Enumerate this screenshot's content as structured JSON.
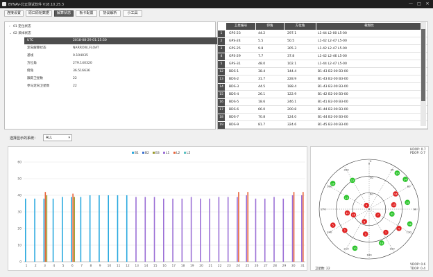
{
  "window": {
    "title": "BYNAV-北云测试软件 V18.10.25.3",
    "min": "—",
    "max": "□",
    "close": "✕"
  },
  "tabs": [
    {
      "label": "连接设置"
    },
    {
      "label": "原口原始数据"
    },
    {
      "label": "解算状态"
    },
    {
      "label": "板卡配置"
    },
    {
      "label": "协议解析"
    },
    {
      "label": "小工具"
    }
  ],
  "active_tab": 2,
  "tree": {
    "node1": "01 定位状态",
    "node2": "02 采样状态",
    "rows": [
      {
        "k": "UTC",
        "v": "2018-08-29 01:25:50"
      },
      {
        "k": "定向解算状态",
        "v": "NARROW_FLOAT"
      },
      {
        "k": "基线",
        "v": "0.104035"
      },
      {
        "k": "方位角",
        "v": "279.140320"
      },
      {
        "k": "俯角",
        "v": "36.516636"
      },
      {
        "k": "跟踪卫星数",
        "v": "22"
      },
      {
        "k": "参与定向卫星数",
        "v": "22"
      }
    ]
  },
  "sat_table": {
    "headers": [
      "卫星编号",
      "仰角",
      "方位角",
      "载频比"
    ],
    "rows": [
      {
        "i": "1",
        "id": "GPS-23",
        "el": "44.2",
        "az": "297.1",
        "sig": "L1-44 L2-00 L5-00"
      },
      {
        "i": "2",
        "id": "GPS-24",
        "el": "5.5",
        "az": "50.5",
        "sig": "L1-42 L2-47 L5-00"
      },
      {
        "i": "3",
        "id": "GPS-25",
        "el": "9.8",
        "az": "305.3",
        "sig": "L1-42 L2-47 L5-00"
      },
      {
        "i": "4",
        "id": "GPS-29",
        "el": "7.7",
        "az": "37.8",
        "sig": "L1-42 L2-46 L5-00"
      },
      {
        "i": "5",
        "id": "GPS-31",
        "el": "48.0",
        "az": "102.1",
        "sig": "L1-44 L2-47 L5-00"
      },
      {
        "i": "12",
        "id": "BDS-1",
        "el": "38.4",
        "az": "144.4",
        "sig": "B1-43 B2-00 B3-00"
      },
      {
        "i": "13",
        "id": "BDS-2",
        "el": "31.7",
        "az": "228.9",
        "sig": "B1-43 B2-00 B3-00"
      },
      {
        "i": "14",
        "id": "BDS-3",
        "el": "44.5",
        "az": "188.4",
        "sig": "B1-43 B2-00 B3-00"
      },
      {
        "i": "15",
        "id": "BDS-4",
        "el": "26.1",
        "az": "122.9",
        "sig": "B1-42 B2-00 B3-00"
      },
      {
        "i": "16",
        "id": "BDS-5",
        "el": "18.6",
        "az": "246.1",
        "sig": "B1-41 B2-00 B3-00"
      },
      {
        "i": "17",
        "id": "BDS-6",
        "el": "66.0",
        "az": "200.8",
        "sig": "B1-44 B2-00 B3-00"
      },
      {
        "i": "18",
        "id": "BDS-7",
        "el": "70.8",
        "az": "124.0",
        "sig": "B1-44 B2-00 B3-00"
      },
      {
        "i": "19",
        "id": "BDS-9",
        "el": "81.7",
        "az": "324.6",
        "sig": "B1-45 B2-00 B3-00"
      }
    ]
  },
  "selector": {
    "label": "选择显示的系统：",
    "value": "ALL",
    "arrow": "▾"
  },
  "chart_data": {
    "type": "bar",
    "legend": [
      "B1",
      "B2",
      "B3",
      "L1",
      "L2",
      "L5"
    ],
    "colors": {
      "B1": "#2aa9df",
      "B2": "#3b6fd0",
      "B3": "#9a9a2a",
      "L1": "#9b6fd6",
      "L2": "#e8643a",
      "L5": "#57c1c1"
    },
    "ylim": [
      0,
      60
    ],
    "yticks": [
      "60",
      "50",
      "40",
      "30",
      "20",
      "10",
      "0"
    ],
    "categories": [
      "1",
      "2",
      "3",
      "4",
      "5",
      "6",
      "7",
      "8",
      "9",
      "10",
      "11",
      "12",
      "13",
      "14",
      "15",
      "16",
      "17",
      "18",
      "19",
      "20",
      "21",
      "22",
      "23",
      "24",
      "25",
      "26",
      "27",
      "28",
      "29",
      "30",
      "31"
    ],
    "series": [
      {
        "name": "B1",
        "values": [
          38,
          38,
          38,
          38,
          39,
          39,
          39,
          40,
          40,
          40,
          40,
          40,
          0,
          0,
          0,
          0,
          0,
          0,
          0,
          0,
          0,
          0,
          0,
          0,
          0,
          0,
          0,
          0,
          0,
          0,
          0
        ]
      },
      {
        "name": "L1",
        "values": [
          0,
          0,
          0,
          0,
          0,
          0,
          0,
          0,
          0,
          0,
          0,
          0,
          39,
          39,
          39,
          38,
          38,
          38,
          39,
          38,
          38,
          39,
          39,
          39,
          40,
          38,
          38,
          39,
          38,
          40,
          40
        ]
      },
      {
        "name": "L2",
        "values": [
          0,
          0,
          42,
          0,
          0,
          41,
          0,
          0,
          0,
          0,
          0,
          0,
          0,
          0,
          0,
          0,
          0,
          0,
          0,
          0,
          0,
          0,
          0,
          42,
          42,
          0,
          0,
          0,
          0,
          42,
          42
        ]
      },
      {
        "name": "B3",
        "values": [
          0,
          0,
          40,
          0,
          0,
          39,
          0,
          0,
          0,
          0,
          0,
          0,
          0,
          0,
          0,
          0,
          0,
          0,
          0,
          0,
          0,
          0,
          0,
          0,
          0,
          0,
          0,
          0,
          0,
          0,
          0
        ]
      }
    ]
  },
  "sky": {
    "hdop": "HDOP: 0.7",
    "pdop": "PDOP: 0.7",
    "vdop": "VDOP: 0.6",
    "tdop": "TDOP: 0.4",
    "sat_count": "卫星数: 22",
    "az_labels": [
      "0",
      "30",
      "60",
      "90",
      "120",
      "150",
      "180",
      "210",
      "240",
      "270",
      "300",
      "330"
    ],
    "el_labels": [
      "0",
      "30",
      "60"
    ],
    "sats": [
      {
        "prn": "23",
        "el": 44.2,
        "az": 297.1,
        "color": "#2ac42a"
      },
      {
        "prn": "24",
        "el": 5.5,
        "az": 50.5,
        "color": "#2ac42a"
      },
      {
        "prn": "25",
        "el": 9.8,
        "az": 305.3,
        "color": "#2ac42a"
      },
      {
        "prn": "29",
        "el": 7.7,
        "az": 37.8,
        "color": "#2ac42a"
      },
      {
        "prn": "31",
        "el": 48.0,
        "az": 102.1,
        "color": "#2ac42a"
      },
      {
        "prn": "12",
        "el": 30,
        "az": 330,
        "color": "#2ac42a"
      },
      {
        "prn": "15",
        "el": 20,
        "az": 80,
        "color": "#2ac42a"
      },
      {
        "prn": "10",
        "el": 15,
        "az": 200,
        "color": "#2ac42a"
      },
      {
        "prn": "18",
        "el": 25,
        "az": 160,
        "color": "#2ac42a"
      },
      {
        "prn": "26",
        "el": 12,
        "az": 110,
        "color": "#2ac42a"
      },
      {
        "prn": "1",
        "el": 38.4,
        "az": 144.4,
        "color": "#e02424"
      },
      {
        "prn": "2",
        "el": 31.7,
        "az": 228.9,
        "color": "#e02424"
      },
      {
        "prn": "3",
        "el": 44.5,
        "az": 188.4,
        "color": "#e02424"
      },
      {
        "prn": "4",
        "el": 26.1,
        "az": 122.9,
        "color": "#e02424"
      },
      {
        "prn": "5",
        "el": 18.6,
        "az": 246.1,
        "color": "#e02424"
      },
      {
        "prn": "6",
        "el": 66.0,
        "az": 200.8,
        "color": "#e02424"
      },
      {
        "prn": "7",
        "el": 70.8,
        "az": 124.0,
        "color": "#e02424"
      },
      {
        "prn": "9",
        "el": 81.7,
        "az": 324.6,
        "color": "#e02424"
      },
      {
        "prn": "11",
        "el": 50,
        "az": 260,
        "color": "#e02424"
      },
      {
        "prn": "13",
        "el": 45,
        "az": 80,
        "color": "#e02424"
      },
      {
        "prn": "14",
        "el": 35,
        "az": 60,
        "color": "#e02424"
      },
      {
        "prn": "16",
        "el": 60,
        "az": 250,
        "color": "#e02424"
      }
    ]
  }
}
